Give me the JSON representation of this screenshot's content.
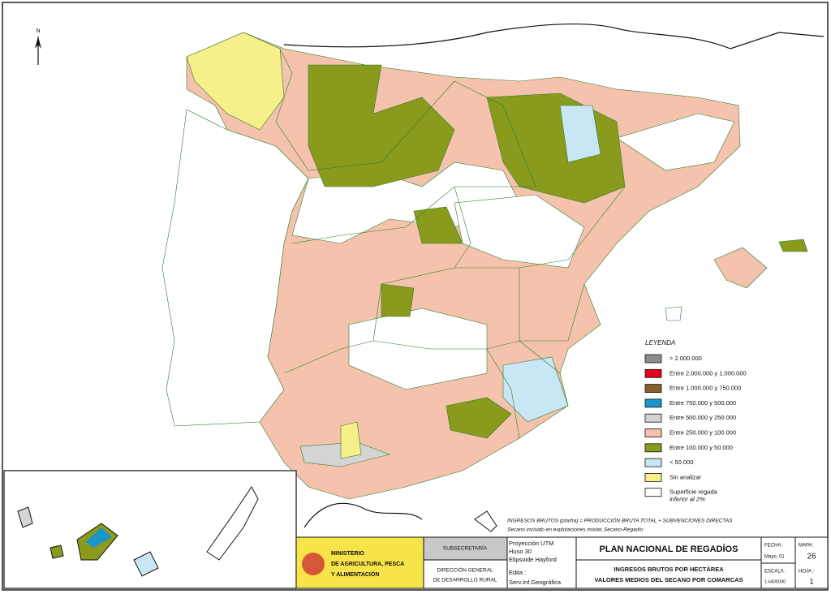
{
  "north": "N",
  "legend": {
    "title": "LEYENDA",
    "items": [
      {
        "label": "> 2.000.000",
        "color": "#8c8c8c"
      },
      {
        "label": "Entre 2.000.000 y 1.000.000",
        "color": "#e3001b"
      },
      {
        "label": "Entre 1.000.000 y 750.000",
        "color": "#8b5e2b"
      },
      {
        "label": "Entre 750.000 y 500.000",
        "color": "#1a96c8"
      },
      {
        "label": "Entre 500.000 y 250.000",
        "color": "#d4d4d4"
      },
      {
        "label": "Entre 250.000 y 100.000",
        "color": "#f5c3ad"
      },
      {
        "label": "Entre 100.000 y 50.000",
        "color": "#8a9a1c"
      },
      {
        "label": "< 50.000",
        "color": "#c9e6f5"
      },
      {
        "label": "Sin analizar",
        "color": "#f7f08a"
      },
      {
        "label": "Superficie regada",
        "label2": "inferior al 2%",
        "color": "#ffffff"
      }
    ]
  },
  "notes": [
    "INGRESOS BRUTOS (pta/ha) = PRODUCCIÓN BRUTA TOTAL + SUBVENCIONES DIRECTAS",
    "Secano incluido en explotaciones mixtas Secano-Regadío"
  ],
  "title_block": {
    "ministry": [
      "MINISTERIO",
      "DE AGRICULTURA, PESCA",
      "Y ALIMENTACIÓN"
    ],
    "subsecretaria": "SUBSECRETARÍA",
    "direccion": [
      "DIRECCIÓN GENERAL",
      "DE DESARROLLO RURAL"
    ],
    "projection": [
      "Proyección UTM",
      "Huso 30",
      "Elipsoide Hayford"
    ],
    "edita_label": "Edita :",
    "edita": "Serv.Inf.Geográfica",
    "plan": "PLAN NACIONAL DE REGADÍOS",
    "subtitle": [
      "INGRESOS BRUTOS POR HECTÁREA",
      "VALORES MEDIOS DEL SECANO POR COMARCAS"
    ],
    "fecha_label": "FECHA :",
    "fecha": "Mayo, 01",
    "escala_label": "ESCALA :",
    "escala": "1:6400000",
    "mapa_label": "MAPA:",
    "mapa": "26",
    "hoja_label": "HOJA :",
    "hoja": "1"
  }
}
